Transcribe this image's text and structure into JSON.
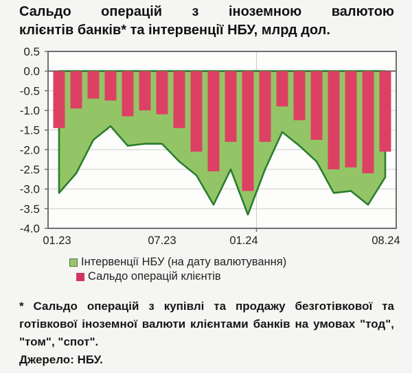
{
  "title": {
    "line1": "Сальдо операцій з іноземною валютою",
    "line2": "клієнтів банків* та інтервенції НБУ, млрд дол."
  },
  "chart_data": {
    "type": "composed",
    "categories": [
      "01.23",
      "02.23",
      "03.23",
      "04.23",
      "05.23",
      "06.23",
      "07.23",
      "08.23",
      "09.23",
      "10.23",
      "11.23",
      "12.23",
      "01.24",
      "02.24",
      "03.24",
      "04.24",
      "05.24",
      "06.24",
      "07.24",
      "08.24"
    ],
    "series": [
      {
        "name": "Інтервенції НБУ (на дату валютування)",
        "type": "area",
        "color": "#93c566",
        "line_color": "#2a7d2e",
        "values": [
          -3.1,
          -2.6,
          -1.75,
          -1.4,
          -1.9,
          -1.85,
          -1.85,
          -2.3,
          -2.65,
          -3.4,
          -2.5,
          -3.65,
          -2.5,
          -1.55,
          -1.9,
          -2.3,
          -3.1,
          -3.05,
          -3.4,
          -2.7
        ]
      },
      {
        "name": "Сальдо операцій клієнтів",
        "type": "bar",
        "color": "#dc4164",
        "values": [
          -1.45,
          -0.95,
          -0.7,
          -0.75,
          -1.15,
          -1.0,
          -1.1,
          -1.45,
          -2.05,
          -2.55,
          -1.8,
          -3.05,
          -1.8,
          -0.9,
          -1.25,
          -1.75,
          -2.5,
          -2.45,
          -2.6,
          -2.05
        ]
      }
    ],
    "x_ticks": [
      "01.23",
      "07.23",
      "01.24",
      "08.24"
    ],
    "y_ticks": [
      "0.5",
      "0.0",
      "-0.5",
      "-1.0",
      "-1.5",
      "-2.0",
      "-2.5",
      "-3.0",
      "-3.5",
      "-4.0"
    ],
    "ylim": [
      -4.0,
      0.5
    ],
    "grid": "on",
    "legend_position": "bottom"
  },
  "legend": {
    "swatch_green_fill": "#9cc46f",
    "swatch_green_border": "#4f7b33",
    "swatch_red_fill": "#cf3560"
  },
  "footnote": "* Сальдо операцій з купівлі та продажу безготівкової та готівкової іноземної валюти клієнтами банків на умовах \"тод\", \"том\", \"спот\".",
  "source": "Джерело: НБУ."
}
